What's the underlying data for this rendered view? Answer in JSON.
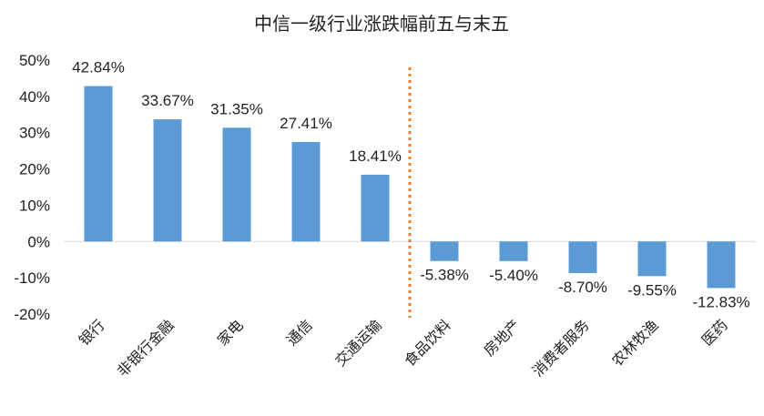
{
  "chart_data": {
    "type": "bar",
    "title": "中信一级行业涨跌幅前五与末五",
    "categories": [
      "银行",
      "非银行金融",
      "家电",
      "通信",
      "交通运输",
      "食品饮料",
      "房地产",
      "消费者服务",
      "农林牧渔",
      "医药"
    ],
    "values": [
      42.84,
      33.67,
      31.35,
      27.41,
      18.41,
      -5.38,
      -5.4,
      -8.7,
      -9.55,
      -12.83
    ],
    "data_labels": [
      "42.84%",
      "33.67%",
      "31.35%",
      "27.41%",
      "18.41%",
      "-5.38%",
      "-5.40%",
      "-8.70%",
      "-9.55%",
      "-12.83%"
    ],
    "ylim": [
      -20,
      50
    ],
    "yticks": [
      50,
      40,
      30,
      20,
      10,
      0,
      -10,
      -20
    ],
    "ytick_labels": [
      "50%",
      "40%",
      "30%",
      "20%",
      "10%",
      "0%",
      "-10%",
      "-20%"
    ],
    "xlabel": "",
    "ylabel": "",
    "grid": false,
    "divider": "dotted vertical line between top five and bottom five",
    "colors": {
      "bar": "#5b9bd5",
      "divider": "#ed7d31",
      "axis": "#d9d9d9"
    }
  }
}
